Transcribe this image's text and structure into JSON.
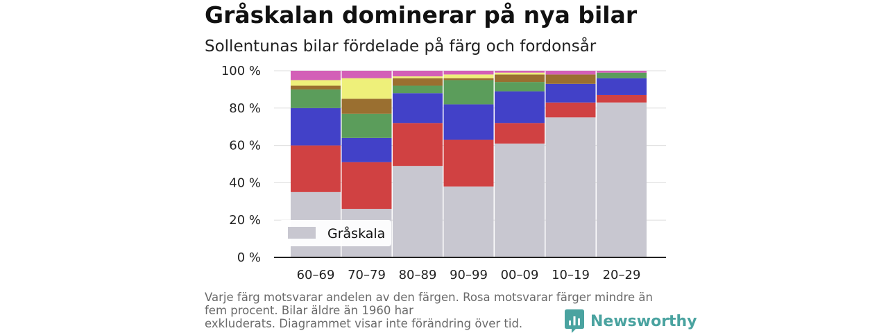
{
  "title": "Gråskalan dominerar på nya bilar",
  "subtitle": "Sollentunas bilar fördelade på färg och fordonsår",
  "footnote": "Varje färg motsvarar andelen av den färgen. Rosa motsvarar färger mindre än fem procent. Bilar äldre än 1960 har\nexkluderats. Diagrammet visar inte förändring över tid.",
  "brand": {
    "name": "Newsworthy",
    "icon": "newsworthy-logo-icon",
    "color": "#4aa3a0"
  },
  "chart_data": {
    "type": "bar",
    "stacked": true,
    "normalized": true,
    "categories": [
      "60–69",
      "70–79",
      "80–89",
      "90–99",
      "00–09",
      "10–19",
      "20–29"
    ],
    "yticks": [
      "0 %",
      "20 %",
      "40 %",
      "60 %",
      "80 %",
      "100 %"
    ],
    "ylim": [
      0,
      100
    ],
    "grid": true,
    "legend": {
      "position": "bottom-left",
      "entries": [
        "Gråskala"
      ]
    },
    "series": [
      {
        "name": "Gråskala",
        "color": "#c8c7d0",
        "values": [
          35,
          26,
          49,
          38,
          61,
          75,
          83
        ]
      },
      {
        "color": "#d04142",
        "values": [
          25,
          25,
          23,
          25,
          11,
          8,
          4
        ]
      },
      {
        "color": "#4241c8",
        "values": [
          20,
          13,
          16,
          19,
          17,
          10,
          9
        ]
      },
      {
        "color": "#5b9d5b",
        "values": [
          10,
          13,
          4,
          13,
          5,
          0,
          3
        ]
      },
      {
        "color": "#9a6f30",
        "values": [
          2,
          8,
          4,
          1,
          4,
          5,
          0
        ]
      },
      {
        "color": "#eef07a",
        "values": [
          3,
          11,
          1,
          2,
          1,
          0,
          0
        ]
      },
      {
        "color": "#d35fb7",
        "values": [
          5,
          4,
          3,
          2,
          1,
          2,
          1
        ]
      }
    ]
  }
}
